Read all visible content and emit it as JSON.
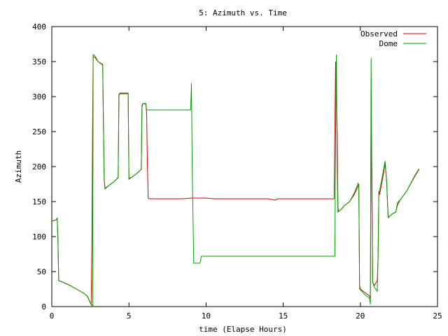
{
  "chart_data": {
    "type": "line",
    "title": "5: Azimuth vs. Time",
    "xlabel": "time (Elapse Hours)",
    "ylabel": "Azimuth",
    "xlim": [
      0,
      25
    ],
    "ylim": [
      0,
      400
    ],
    "x_ticks": [
      0,
      5,
      10,
      15,
      20,
      25
    ],
    "y_ticks": [
      0,
      50,
      100,
      150,
      200,
      250,
      300,
      350,
      400
    ],
    "grid": false,
    "legend_position": "top-right",
    "series": [
      {
        "name": "Observed",
        "color": "#cc0000",
        "points": [
          [
            0.0,
            122
          ],
          [
            0.3,
            124
          ],
          [
            0.35,
            127
          ],
          [
            0.4,
            95
          ],
          [
            0.45,
            37
          ],
          [
            0.6,
            36
          ],
          [
            0.8,
            34
          ],
          [
            1.2,
            30
          ],
          [
            1.6,
            25
          ],
          [
            2.0,
            20
          ],
          [
            2.3,
            15
          ],
          [
            2.4,
            10
          ],
          [
            2.5,
            5
          ],
          [
            2.55,
            3
          ],
          [
            2.6,
            92
          ],
          [
            2.65,
            270
          ],
          [
            2.68,
            357
          ],
          [
            2.8,
            356
          ],
          [
            3.0,
            350
          ],
          [
            3.3,
            346
          ],
          [
            3.35,
            255
          ],
          [
            3.4,
            180
          ],
          [
            3.45,
            169
          ],
          [
            3.7,
            173
          ],
          [
            4.0,
            178
          ],
          [
            4.2,
            182
          ],
          [
            4.3,
            184
          ],
          [
            4.35,
            300
          ],
          [
            4.4,
            305
          ],
          [
            4.5,
            305
          ],
          [
            4.95,
            305
          ],
          [
            5.0,
            183
          ],
          [
            5.2,
            185
          ],
          [
            5.5,
            190
          ],
          [
            5.8,
            196
          ],
          [
            5.85,
            285
          ],
          [
            5.9,
            290
          ],
          [
            6.1,
            290
          ],
          [
            6.15,
            275
          ],
          [
            6.2,
            200
          ],
          [
            6.25,
            155
          ],
          [
            6.3,
            154
          ],
          [
            8.5,
            154
          ],
          [
            9.0,
            155
          ],
          [
            10.0,
            155
          ],
          [
            10.5,
            154
          ],
          [
            14.0,
            154
          ],
          [
            14.5,
            152
          ],
          [
            14.6,
            154
          ],
          [
            18.3,
            154
          ],
          [
            18.35,
            250
          ],
          [
            18.4,
            350
          ],
          [
            18.45,
            290
          ],
          [
            18.5,
            250
          ],
          [
            18.55,
            140
          ],
          [
            18.6,
            136
          ],
          [
            18.8,
            140
          ],
          [
            19.0,
            145
          ],
          [
            19.3,
            150
          ],
          [
            19.6,
            160
          ],
          [
            19.85,
            172
          ],
          [
            19.9,
            175
          ],
          [
            19.95,
            30
          ],
          [
            20.0,
            25
          ],
          [
            20.3,
            20
          ],
          [
            20.6,
            15
          ],
          [
            20.65,
            10
          ],
          [
            20.7,
            290
          ],
          [
            20.75,
            195
          ],
          [
            20.8,
            35
          ],
          [
            20.9,
            30
          ],
          [
            21.1,
            37
          ],
          [
            21.15,
            70
          ],
          [
            21.2,
            165
          ],
          [
            21.25,
            160
          ],
          [
            21.5,
            190
          ],
          [
            21.6,
            205
          ],
          [
            21.7,
            180
          ],
          [
            21.8,
            128
          ],
          [
            21.9,
            129
          ],
          [
            22.1,
            133
          ],
          [
            22.3,
            135
          ],
          [
            22.4,
            145
          ],
          [
            22.6,
            153
          ],
          [
            23.0,
            165
          ],
          [
            23.5,
            185
          ],
          [
            23.8,
            196
          ]
        ]
      },
      {
        "name": "Dome",
        "color": "#00a000",
        "points": [
          [
            0.0,
            122
          ],
          [
            0.3,
            124
          ],
          [
            0.35,
            127
          ],
          [
            0.4,
            95
          ],
          [
            0.45,
            37
          ],
          [
            0.6,
            36
          ],
          [
            0.8,
            34
          ],
          [
            1.2,
            30
          ],
          [
            1.6,
            25
          ],
          [
            2.0,
            20
          ],
          [
            2.3,
            15
          ],
          [
            2.4,
            10
          ],
          [
            2.5,
            5
          ],
          [
            2.6,
            2
          ],
          [
            2.65,
            0
          ],
          [
            2.68,
            360
          ],
          [
            2.8,
            358
          ],
          [
            3.0,
            350
          ],
          [
            3.3,
            345
          ],
          [
            3.35,
            260
          ],
          [
            3.4,
            183
          ],
          [
            3.45,
            168
          ],
          [
            3.7,
            173
          ],
          [
            4.0,
            178
          ],
          [
            4.2,
            182
          ],
          [
            4.3,
            185
          ],
          [
            4.35,
            303
          ],
          [
            4.4,
            304
          ],
          [
            4.5,
            304
          ],
          [
            4.95,
            304
          ],
          [
            5.0,
            182
          ],
          [
            5.2,
            185
          ],
          [
            5.5,
            190
          ],
          [
            5.8,
            196
          ],
          [
            5.85,
            288
          ],
          [
            5.9,
            290
          ],
          [
            6.1,
            289
          ],
          [
            6.15,
            281
          ],
          [
            9.0,
            281
          ],
          [
            9.05,
            319
          ],
          [
            9.1,
            200
          ],
          [
            9.2,
            62
          ],
          [
            9.6,
            62
          ],
          [
            9.7,
            72
          ],
          [
            18.35,
            72
          ],
          [
            18.4,
            250
          ],
          [
            18.45,
            360
          ],
          [
            18.5,
            200
          ],
          [
            18.55,
            135
          ],
          [
            18.6,
            136
          ],
          [
            18.8,
            140
          ],
          [
            19.0,
            145
          ],
          [
            19.3,
            150
          ],
          [
            19.6,
            162
          ],
          [
            19.85,
            176
          ],
          [
            19.9,
            172
          ],
          [
            19.95,
            25
          ],
          [
            20.0,
            24
          ],
          [
            20.3,
            17
          ],
          [
            20.6,
            12
          ],
          [
            20.65,
            3
          ],
          [
            20.7,
            355
          ],
          [
            20.75,
            150
          ],
          [
            20.8,
            35
          ],
          [
            20.9,
            28
          ],
          [
            21.1,
            22
          ],
          [
            21.15,
            70
          ],
          [
            21.2,
            160
          ],
          [
            21.3,
            172
          ],
          [
            21.5,
            195
          ],
          [
            21.6,
            208
          ],
          [
            21.7,
            180
          ],
          [
            21.8,
            127
          ],
          [
            21.9,
            129
          ],
          [
            22.1,
            133
          ],
          [
            22.3,
            135
          ],
          [
            22.4,
            148
          ],
          [
            22.6,
            153
          ],
          [
            23.0,
            165
          ],
          [
            23.5,
            186
          ],
          [
            23.8,
            197
          ]
        ]
      }
    ]
  }
}
